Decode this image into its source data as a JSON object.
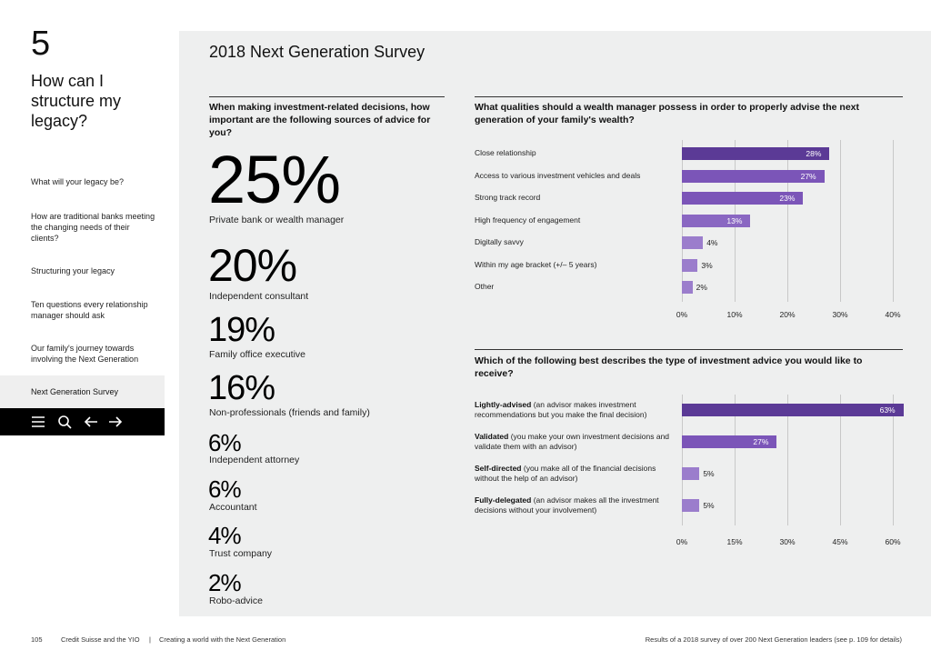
{
  "sidebar": {
    "chapter_number": "5",
    "chapter_title": "How can I structure my legacy?",
    "nav_items": [
      "What will your legacy be?",
      "How are traditional banks meeting the changing needs of their clients?",
      "Structuring your legacy",
      "Ten questions every relationship manager should ask",
      "Our family's journey towards involving the Next Generation"
    ],
    "active_item": "Next Generation Survey",
    "toolbar_icons": [
      "menu-icon",
      "search-icon",
      "arrow-left-icon",
      "arrow-right-icon"
    ]
  },
  "main": {
    "title": "2018 Next Generation Survey",
    "left_question": "When making investment-related decisions, how important are the following sources of advice for you?",
    "sources": [
      {
        "pct": "25%",
        "label": "Private bank or wealth manager"
      },
      {
        "pct": "20%",
        "label": "Independent consultant"
      },
      {
        "pct": "19%",
        "label": "Family office executive"
      },
      {
        "pct": "16%",
        "label": "Non-professionals (friends and family)"
      },
      {
        "pct": "6%",
        "label": "Independent attorney"
      },
      {
        "pct": "6%",
        "label": "Accountant"
      },
      {
        "pct": "4%",
        "label": "Trust company"
      },
      {
        "pct": "2%",
        "label": "Robo-advice"
      }
    ]
  },
  "chart_data": [
    {
      "type": "bar",
      "orientation": "horizontal",
      "title": "What qualities should a wealth manager possess in order to properly advise the next generation of your family's wealth?",
      "categories": [
        "Close relationship",
        "Access to various investment vehicles and deals",
        "Strong track record",
        "High frequency of engagement",
        "Digitally savvy",
        "Within my age bracket (+/– 5 years)",
        "Other"
      ],
      "values": [
        28,
        27,
        23,
        13,
        4,
        3,
        2
      ],
      "value_labels": [
        "28%",
        "27%",
        "23%",
        "13%",
        "4%",
        "3%",
        "2%"
      ],
      "xlim": [
        0,
        40
      ],
      "xticks": [
        "0%",
        "10%",
        "20%",
        "30%",
        "40%"
      ],
      "grid": true,
      "colors": [
        "#5b3a96",
        "#7b55b8",
        "#7b55b8",
        "#8a67c2",
        "#9b7dcc",
        "#9b7dcc",
        "#9b7dcc"
      ]
    },
    {
      "type": "bar",
      "orientation": "horizontal",
      "title": "Which of the following best describes the type of investment advice you would like to receive?",
      "categories": [
        {
          "bold": "Lightly-advised",
          "rest": " (an advisor makes investment recommendations but you make the final decision)"
        },
        {
          "bold": "Validated",
          "rest": " (you make your own investment decisions and validate them with an advisor)"
        },
        {
          "bold": "Self-directed",
          "rest": " (you make all of the financial decisions without the help of an advisor)"
        },
        {
          "bold": "Fully-delegated",
          "rest": " (an advisor makes all the investment decisions without your involvement)"
        }
      ],
      "values": [
        63,
        27,
        5,
        5
      ],
      "value_labels": [
        "63%",
        "27%",
        "5%",
        "5%"
      ],
      "xlim": [
        0,
        60
      ],
      "xticks": [
        "0%",
        "15%",
        "30%",
        "45%",
        "60%"
      ],
      "grid": true,
      "colors": [
        "#5b3a96",
        "#7b55b8",
        "#9b7dcc",
        "#9b7dcc"
      ]
    }
  ],
  "footer": {
    "page_number": "105",
    "publication": "Credit Suisse and the YIO",
    "separator": "|",
    "section": "Creating a world with the Next Generation",
    "note": "Results of a 2018 survey of over 200 Next Generation leaders (see p. 109 for details)"
  }
}
